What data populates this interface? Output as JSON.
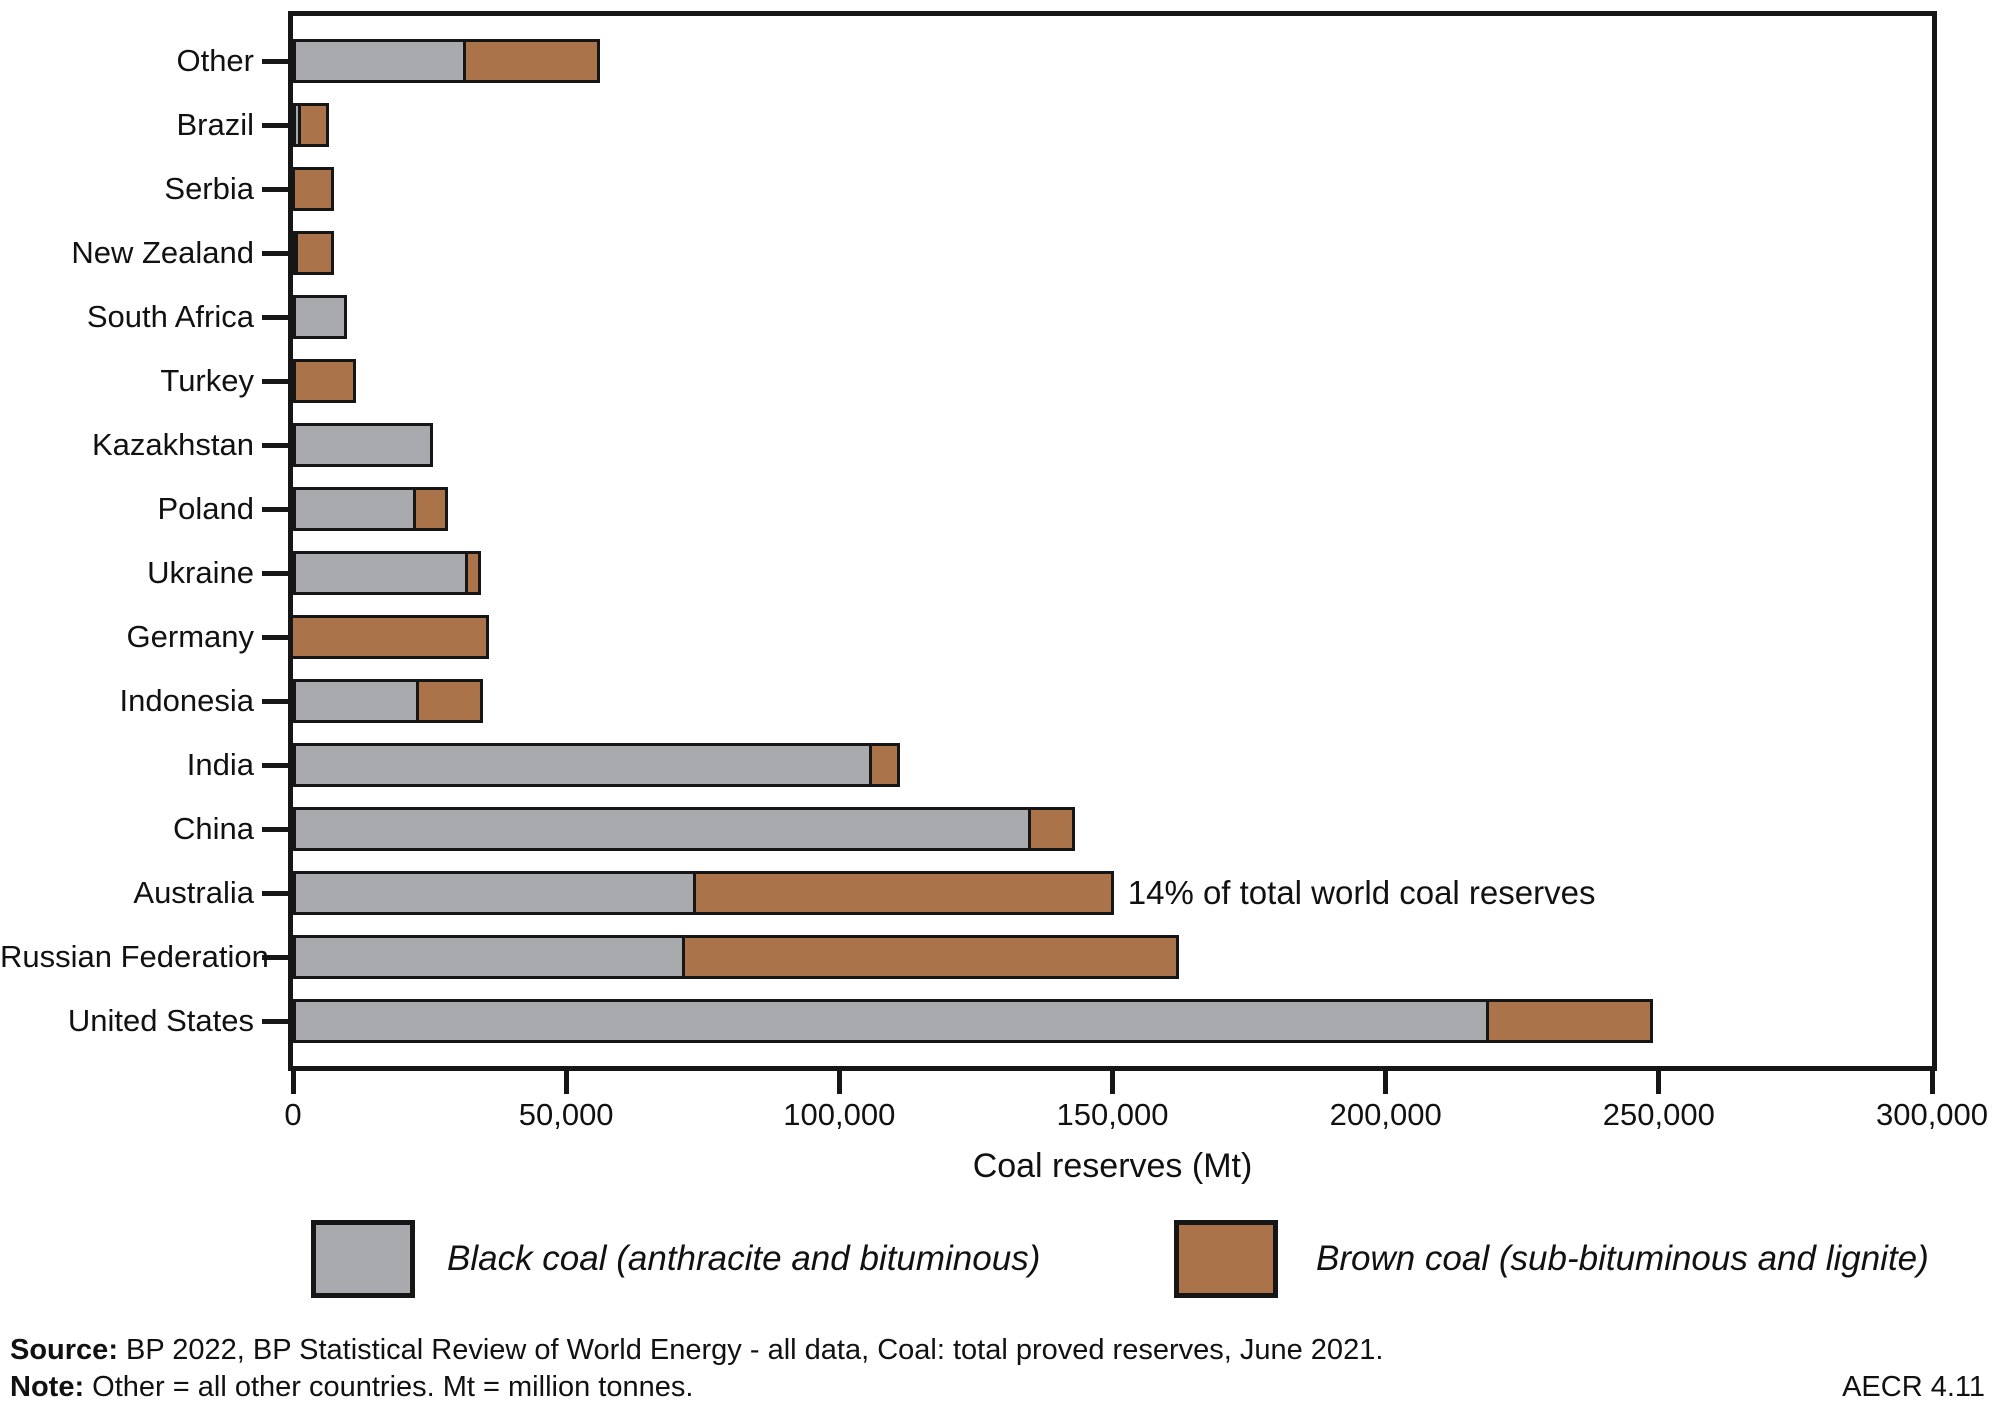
{
  "chart_data": {
    "type": "bar",
    "orientation": "horizontal",
    "stacked": true,
    "title": "",
    "xlabel": "Coal reserves (Mt)",
    "ylabel": "",
    "xlim": [
      0,
      300000
    ],
    "grid": false,
    "legend_position": "bottom",
    "xticks": [
      0,
      50000,
      100000,
      150000,
      200000,
      250000,
      300000
    ],
    "xtick_labels": [
      "0",
      "50,000",
      "100,000",
      "150,000",
      "200,000",
      "250,000",
      "300,000"
    ],
    "categories": [
      "Other",
      "Brazil",
      "Serbia",
      "New Zealand",
      "South Africa",
      "Turkey",
      "Kazakhstan",
      "Poland",
      "Ukraine",
      "Germany",
      "Indonesia",
      "India",
      "China",
      "Australia",
      "Russian Federation",
      "United States"
    ],
    "series": [
      {
        "name": "Black coal (anthracite and bituminous)",
        "color": "#a8aaad",
        "values": [
          31679,
          1547,
          402,
          825,
          9893,
          551,
          25605,
          22530,
          32039,
          3,
          23141,
          105979,
          135069,
          73719,
          71719,
          218938
        ]
      },
      {
        "name": "Brown coal (sub-bituminous and lignite)",
        "color": "#ab734a",
        "values": [
          24595,
          5049,
          7112,
          6750,
          0,
          10975,
          0,
          5865,
          2336,
          35900,
          11728,
          5073,
          8128,
          76508,
          90447,
          30003
        ]
      }
    ],
    "annotation": {
      "text": "14% of total world coal reserves",
      "category": "Australia",
      "category_index": 13
    }
  },
  "footer": {
    "source_label": "Source:",
    "source_text": " BP 2022, BP Statistical Review of World Energy - all data, Coal: total proved reserves, June 2021.",
    "note_label": "Note:",
    "note_text": " Other = all other countries. Mt = million tonnes.",
    "figure_code": "AECR 4.11"
  }
}
